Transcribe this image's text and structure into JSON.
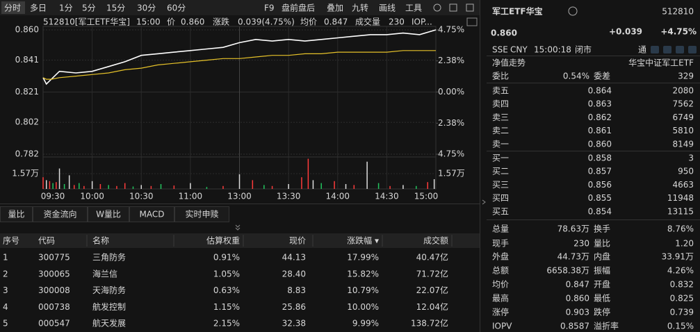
{
  "toolbar": {
    "tabs": [
      "分时",
      "多日",
      "1分",
      "5分",
      "15分",
      "30分",
      "60分"
    ],
    "tools": [
      "F9",
      "盘前盘后",
      "叠加",
      "九转",
      "画线",
      "工具"
    ]
  },
  "info": {
    "code_name": "512810[军工ETF华宝]",
    "time": "15:00",
    "price_label": "价",
    "price": "0.860",
    "change_label": "涨跌",
    "change": "0.039(4.75%)",
    "avg_label": "均价",
    "avg": "0.847",
    "vol_label": "成交量",
    "vol": "230",
    "iopv": "IOP..."
  },
  "chart_data": {
    "type": "line",
    "up_color": "#ff3b3b",
    "down_color": "#22c55e",
    "xlim": [
      0,
      240
    ],
    "xticks": [
      {
        "value": 0,
        "label": "09:30"
      },
      {
        "value": 30,
        "label": "10:00"
      },
      {
        "value": 60,
        "label": "10:30"
      },
      {
        "value": 90,
        "label": "11:00"
      },
      {
        "value": 120,
        "label": "13:00"
      },
      {
        "value": 150,
        "label": "13:30"
      },
      {
        "value": 180,
        "label": "14:00"
      },
      {
        "value": 210,
        "label": "14:30"
      },
      {
        "value": 240,
        "label": "15:00"
      }
    ],
    "ylim": [
      0.782,
      0.86
    ],
    "yticks": [
      {
        "value": 0.86,
        "label": "0.860"
      },
      0.841,
      0.821,
      0.802,
      0.782
    ],
    "y2lim": [
      -4.75,
      4.75
    ],
    "y2ticks": [
      {
        "value": 4.75,
        "label": "4.75%"
      },
      {
        "value": 2.38,
        "label": "2.38%"
      },
      {
        "value": 0,
        "label": "0.00%"
      },
      {
        "value": -2.38,
        "label": "2.38%"
      },
      {
        "value": -4.75,
        "label": "4.75%"
      }
    ],
    "x": [
      0,
      2,
      5,
      10,
      20,
      30,
      40,
      50,
      60,
      70,
      80,
      90,
      100,
      110,
      120,
      130,
      140,
      150,
      160,
      170,
      180,
      190,
      200,
      210,
      220,
      230,
      240
    ],
    "series": [
      {
        "name": "价",
        "color": "#ffffff",
        "values": [
          0.83,
          0.826,
          0.829,
          0.834,
          0.833,
          0.834,
          0.837,
          0.84,
          0.844,
          0.845,
          0.846,
          0.847,
          0.848,
          0.849,
          0.852,
          0.854,
          0.853,
          0.854,
          0.853,
          0.854,
          0.855,
          0.856,
          0.857,
          0.857,
          0.858,
          0.857,
          0.86
        ]
      },
      {
        "name": "均价",
        "color": "#e6c229",
        "values": [
          0.83,
          0.829,
          0.829,
          0.83,
          0.831,
          0.832,
          0.833,
          0.835,
          0.836,
          0.838,
          0.839,
          0.84,
          0.841,
          0.842,
          0.842,
          0.843,
          0.844,
          0.844,
          0.845,
          0.845,
          0.846,
          0.846,
          0.846,
          0.846,
          0.847,
          0.847,
          0.847
        ]
      }
    ],
    "volume": {
      "ylim": [
        0,
        31400
      ],
      "yticks": [
        {
          "value": 15700,
          "label": "1.57万"
        }
      ],
      "x": [
        0,
        2,
        4,
        6,
        8,
        10,
        13,
        16,
        19,
        22,
        25,
        30,
        35,
        40,
        45,
        50,
        55,
        60,
        66,
        72,
        80,
        90,
        100,
        110,
        120,
        128,
        135,
        140,
        150,
        158,
        162,
        165,
        170,
        178,
        185,
        190,
        198,
        205,
        212,
        220,
        228,
        235,
        239
      ],
      "values": [
        12000,
        9000,
        8000,
        6000,
        7000,
        21000,
        5000,
        14000,
        4000,
        6000,
        3000,
        8000,
        5000,
        4000,
        3000,
        6000,
        2500,
        4000,
        3000,
        5000,
        3500,
        6000,
        2000,
        3000,
        15000,
        9000,
        4000,
        3000,
        5000,
        12000,
        31000,
        9000,
        6000,
        8000,
        5000,
        4000,
        28000,
        6000,
        3000,
        4000,
        3000,
        7000,
        10000
      ],
      "colors": [
        "#ff3b3b",
        "#dddddd",
        "#ff3b3b",
        "#22c55e",
        "#ff3b3b",
        "#dddddd",
        "#22c55e",
        "#dddddd",
        "#ff3b3b",
        "#22c55e",
        "#ff3b3b",
        "#dddddd",
        "#ff3b3b",
        "#22c55e",
        "#ff3b3b",
        "#ff3b3b",
        "#22c55e",
        "#dddddd",
        "#ff3b3b",
        "#22c55e",
        "#ff3b3b",
        "#dddddd",
        "#22c55e",
        "#ff3b3b",
        "#dddddd",
        "#ff3b3b",
        "#22c55e",
        "#ff3b3b",
        "#dddddd",
        "#ff3b3b",
        "#ff3b3b",
        "#dddddd",
        "#22c55e",
        "#ff3b3b",
        "#dddddd",
        "#ff3b3b",
        "#dddddd",
        "#22c55e",
        "#ff3b3b",
        "#dddddd",
        "#22c55e",
        "#ff3b3b",
        "#dddddd"
      ]
    }
  },
  "bottom_tabs": [
    "量比",
    "资金流向",
    "W量比",
    "MACD",
    "实时申赎"
  ],
  "table": {
    "up_color": "#ff3b3b",
    "headers": [
      "序号",
      "代码",
      "名称",
      "估算权重",
      "现价",
      "涨跌幅 ▾",
      "成交额"
    ],
    "rows": [
      [
        "1",
        "300775",
        "三角防务",
        "0.91%",
        "44.13",
        "17.99%",
        "40.47亿"
      ],
      [
        "2",
        "300065",
        "海兰信",
        "1.05%",
        "28.40",
        "15.82%",
        "71.72亿"
      ],
      [
        "3",
        "300008",
        "天海防务",
        "0.63%",
        "8.83",
        "10.79%",
        "22.07亿"
      ],
      [
        "4",
        "000738",
        "航发控制",
        "1.15%",
        "25.86",
        "10.00%",
        "12.04亿"
      ],
      [
        "5",
        "000547",
        "航天发展",
        "2.15%",
        "32.38",
        "9.99%",
        "138.72亿"
      ]
    ]
  },
  "quote": {
    "name": "军工ETF华宝",
    "code": "512810",
    "price": "0.860",
    "change": "+0.039",
    "pct": "+4.75%",
    "exchange": "SSE",
    "currency": "CNY",
    "time": "15:00:18",
    "status": "闭市",
    "tong": "通",
    "nav_label": "净值走势",
    "index_name": "华宝中证军工ETF",
    "weibi_label": "委比",
    "weibi": "0.54%",
    "weicha_label": "委差",
    "weicha": "329",
    "price_color": "#ff3b3b",
    "asks": [
      {
        "label": "卖五",
        "price": "0.864",
        "volume": "2080"
      },
      {
        "label": "卖四",
        "price": "0.863",
        "volume": "7562"
      },
      {
        "label": "卖三",
        "price": "0.862",
        "volume": "6749"
      },
      {
        "label": "卖二",
        "price": "0.861",
        "volume": "5810"
      },
      {
        "label": "卖一",
        "price": "0.860",
        "volume": "8149"
      }
    ],
    "bids": [
      {
        "label": "买一",
        "price": "0.858",
        "volume": "3"
      },
      {
        "label": "买二",
        "price": "0.857",
        "volume": "950"
      },
      {
        "label": "买三",
        "price": "0.856",
        "volume": "4663"
      },
      {
        "label": "买四",
        "price": "0.855",
        "volume": "11948"
      },
      {
        "label": "买五",
        "price": "0.854",
        "volume": "13115"
      }
    ],
    "stats": [
      [
        {
          "label": "总量",
          "value": "78.63万"
        },
        {
          "label": "换手",
          "value": "8.76%"
        }
      ],
      [
        {
          "label": "现手",
          "value": "230"
        },
        {
          "label": "量比",
          "value": "1.20"
        }
      ],
      [
        {
          "label": "外盘",
          "value": "44.73万",
          "color": "#ff3b3b"
        },
        {
          "label": "内盘",
          "value": "33.91万",
          "color": "#22c55e"
        }
      ],
      [
        {
          "label": "总额",
          "value": "6658.38万"
        },
        {
          "label": "振幅",
          "value": "4.26%"
        }
      ],
      [
        {
          "label": "均价",
          "value": "0.847",
          "color": "#ff3b3b"
        },
        {
          "label": "开盘",
          "value": "0.832",
          "color": "#ff3b3b"
        }
      ],
      [
        {
          "label": "最高",
          "value": "0.860",
          "color": "#ff3b3b"
        },
        {
          "label": "最低",
          "value": "0.825",
          "color": "#ff3b3b"
        }
      ],
      [
        {
          "label": "涨停",
          "value": "0.903",
          "color": "#ff3b3b"
        },
        {
          "label": "跌停",
          "value": "0.739",
          "color": "#22c55e"
        }
      ],
      [
        {
          "label": "IOPV",
          "value": "0.8587"
        },
        {
          "label": "溢折率",
          "value": "0.15%",
          "color": "#ff3b3b"
        }
      ]
    ]
  }
}
